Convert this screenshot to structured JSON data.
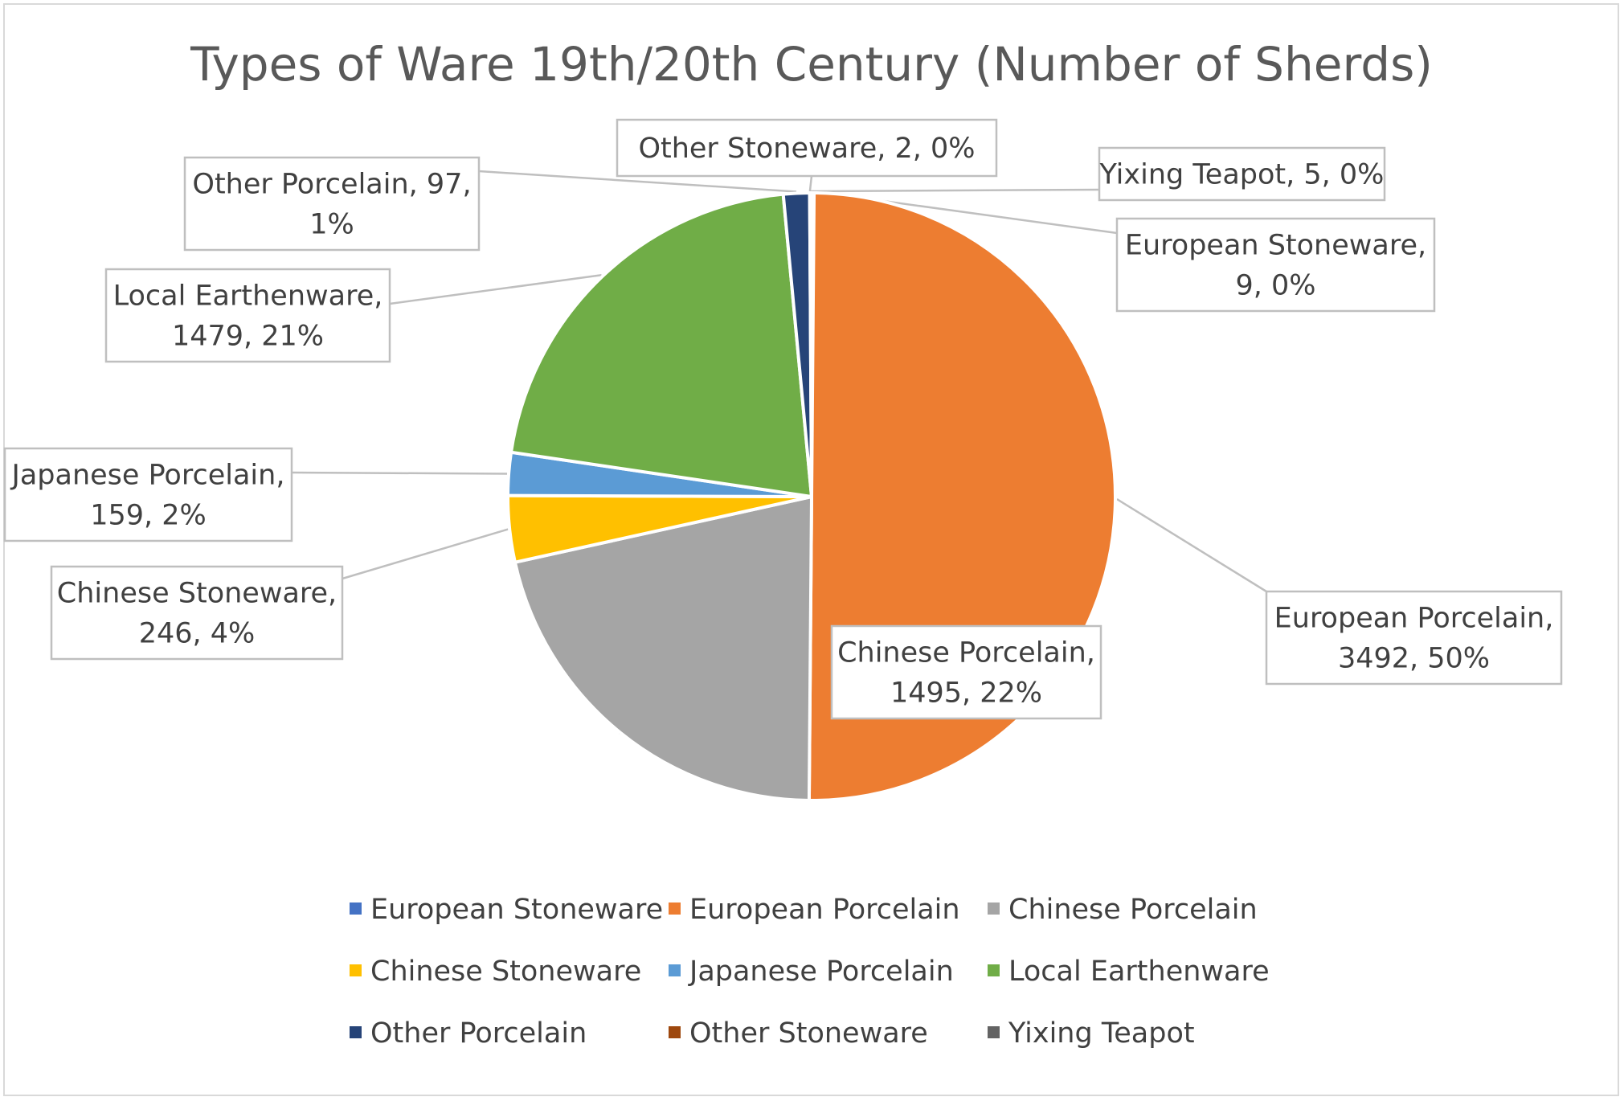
{
  "chart_data": {
    "type": "pie",
    "title": "Types of Ware 19th/20th Century (Number of Sherds)",
    "slices": [
      {
        "name": "European Stoneware",
        "value": 9,
        "percent": "0%",
        "label": "European Stoneware, 9, 0%",
        "label_lines": [
          "European Stoneware,",
          "9, 0%"
        ],
        "color": "#4472c4"
      },
      {
        "name": "European Porcelain",
        "value": 3492,
        "percent": "50%",
        "label": "European Porcelain, 3492, 50%",
        "label_lines": [
          "European Porcelain,",
          "3492, 50%"
        ],
        "color": "#ed7d31"
      },
      {
        "name": "Chinese Porcelain",
        "value": 1495,
        "percent": "22%",
        "label": "Chinese Porcelain, 1495, 22%",
        "label_lines": [
          "Chinese Porcelain,",
          "1495, 22%"
        ],
        "color": "#a5a5a5"
      },
      {
        "name": "Chinese Stoneware",
        "value": 246,
        "percent": "4%",
        "label": "Chinese Stoneware, 246, 4%",
        "label_lines": [
          "Chinese Stoneware,",
          "246, 4%"
        ],
        "color": "#ffc000"
      },
      {
        "name": "Japanese Porcelain",
        "value": 159,
        "percent": "2%",
        "label": "Japanese Porcelain, 159, 2%",
        "label_lines": [
          "Japanese Porcelain,",
          "159, 2%"
        ],
        "color": "#5b9bd5"
      },
      {
        "name": "Local Earthenware",
        "value": 1479,
        "percent": "21%",
        "label": "Local Earthenware, 1479, 21%",
        "label_lines": [
          "Local Earthenware,",
          "1479, 21%"
        ],
        "color": "#70ad47"
      },
      {
        "name": "Other Porcelain",
        "value": 97,
        "percent": "1%",
        "label": "Other Porcelain, 97, 1%",
        "label_lines": [
          "Other Porcelain, 97,",
          "1%"
        ],
        "color": "#264478"
      },
      {
        "name": "Other Stoneware",
        "value": 2,
        "percent": "0%",
        "label": "Other Stoneware, 2, 0%",
        "label_lines": [
          "Other Stoneware, 2, 0%"
        ],
        "color": "#9e480e"
      },
      {
        "name": "Yixing Teapot",
        "value": 5,
        "percent": "0%",
        "label": "Yixing Teapot, 5, 0%",
        "label_lines": [
          "Yixing Teapot, 5, 0%"
        ],
        "color": "#636363"
      }
    ],
    "legend": {
      "position": "bottom",
      "items": [
        "European Stoneware",
        "European Porcelain",
        "Chinese Porcelain",
        "Chinese Stoneware",
        "Japanese Porcelain",
        "Local Earthenware",
        "Other Porcelain",
        "Other Stoneware",
        "Yixing Teapot"
      ]
    }
  }
}
